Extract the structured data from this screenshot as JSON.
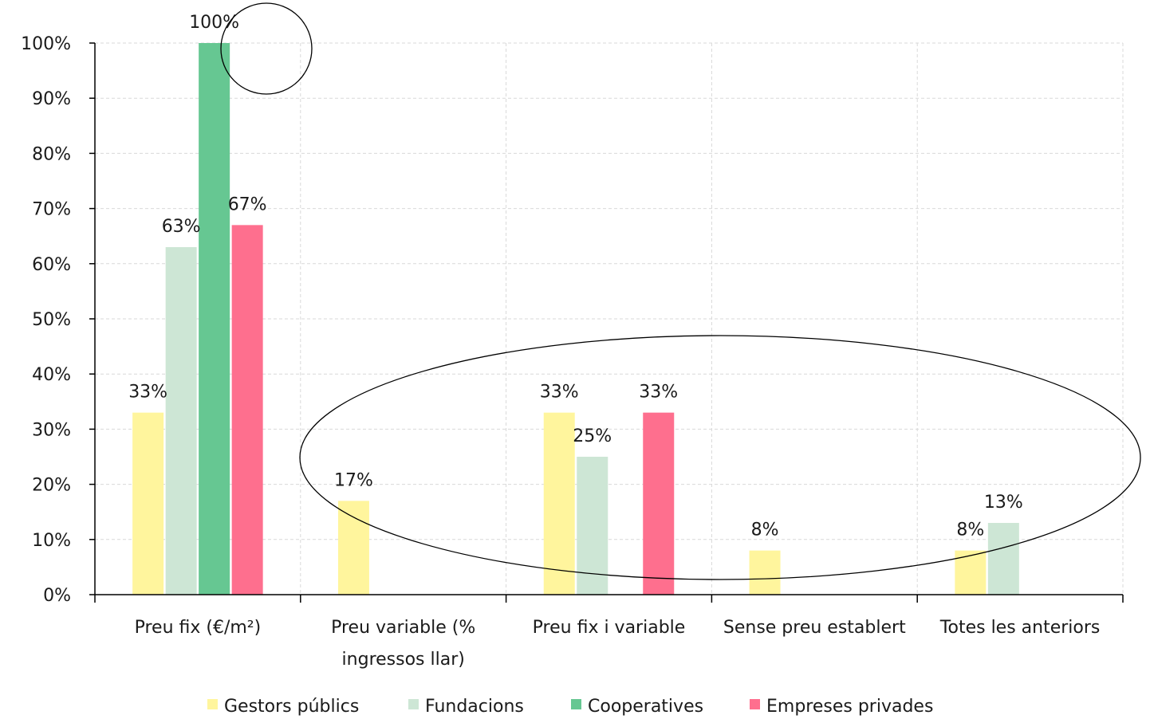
{
  "chart_data": {
    "type": "bar",
    "categories": [
      [
        "Preu fix (€/m²)"
      ],
      [
        "Preu variable (%",
        "ingressos llar)"
      ],
      [
        "Preu fix i variable"
      ],
      [
        "Sense preu establert"
      ],
      [
        "Totes les anteriors"
      ]
    ],
    "series": [
      {
        "name": "Gestors públics",
        "color": "#fff59d",
        "values": [
          33,
          17,
          33,
          8,
          8
        ]
      },
      {
        "name": "Fundacions",
        "color": "#cde6d5",
        "values": [
          63,
          0,
          25,
          0,
          13
        ]
      },
      {
        "name": "Cooperatives",
        "color": "#66c792",
        "values": [
          100,
          0,
          0,
          0,
          0
        ]
      },
      {
        "name": "Empreses privades",
        "color": "#fe6f8e",
        "values": [
          67,
          0,
          33,
          0,
          0
        ]
      }
    ],
    "data_labels": [
      [
        "33%",
        "17%",
        "33%",
        "8%",
        "8%"
      ],
      [
        "63%",
        "",
        "25%",
        "",
        "13%"
      ],
      [
        "100%",
        "",
        "",
        "",
        ""
      ],
      [
        "67%",
        "",
        "33%",
        "",
        ""
      ]
    ],
    "ylim": [
      0,
      100
    ],
    "yticks": [
      "0%",
      "10%",
      "20%",
      "30%",
      "40%",
      "50%",
      "60%",
      "70%",
      "80%",
      "90%",
      "100%"
    ],
    "grid": true,
    "legend_position": "bottom",
    "annotations": [
      "circle around 100% label",
      "ellipse around minority categories"
    ],
    "title": "",
    "xlabel": "",
    "ylabel": ""
  }
}
